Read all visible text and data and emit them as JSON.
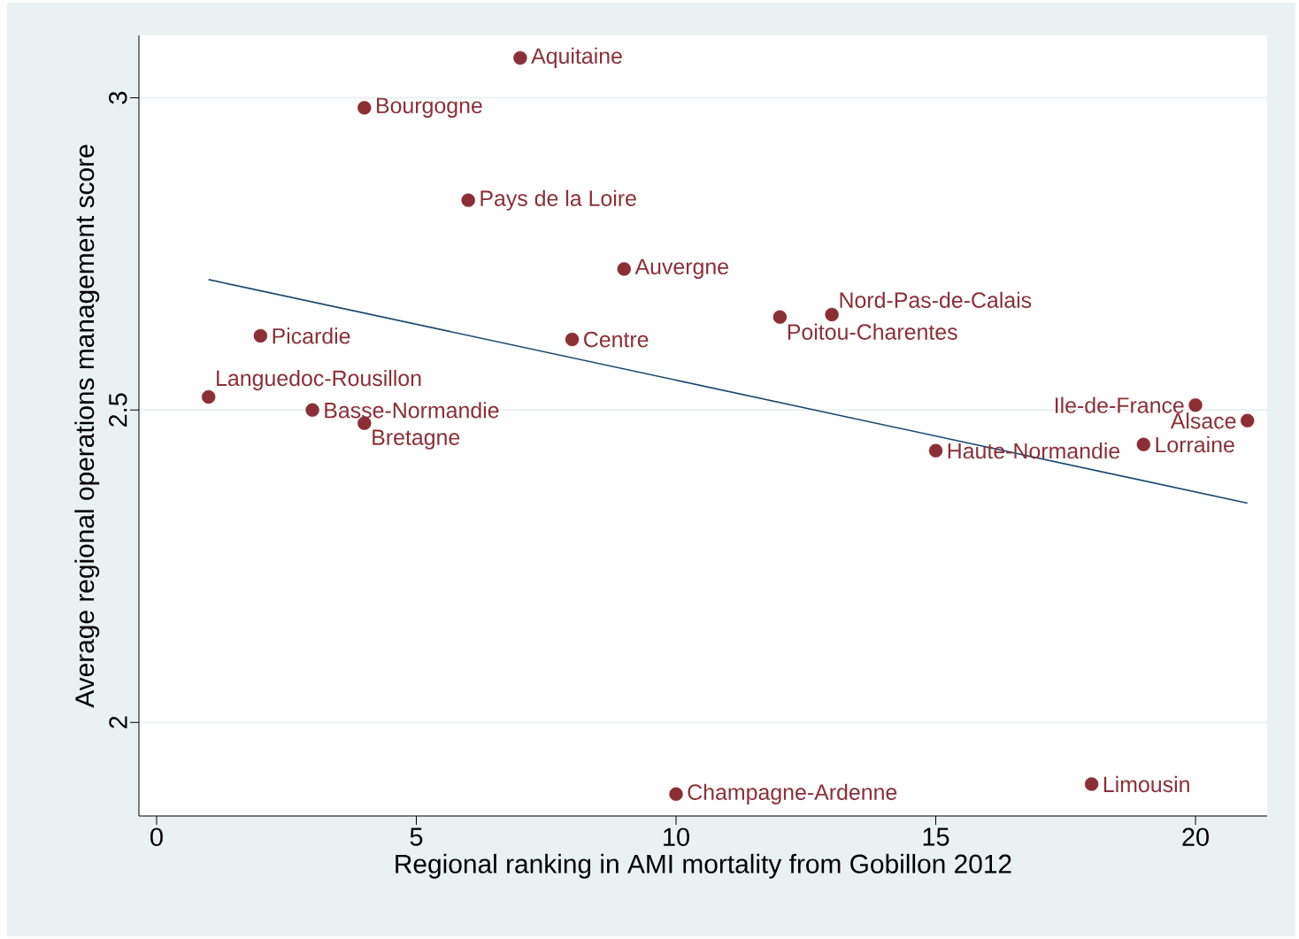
{
  "chart_data": {
    "type": "scatter",
    "xlabel": "Regional ranking in AMI mortality from Gobillon 2012",
    "ylabel": "Average regional operations management score",
    "xlim": [
      -0.34,
      21.38
    ],
    "ylim": [
      1.85,
      3.1
    ],
    "xticks": [
      0,
      5,
      10,
      15,
      20
    ],
    "yticks": [
      2,
      2.5,
      3
    ],
    "grid": "y",
    "series": [
      {
        "type": "scatter",
        "color": "#8b2f37",
        "x": [
          7,
          4,
          6,
          9,
          12,
          13,
          2,
          8,
          1,
          3,
          4,
          20,
          21,
          19,
          15,
          18,
          10
        ],
        "values": [
          3.064,
          2.984,
          2.836,
          2.726,
          2.649,
          2.653,
          2.619,
          2.613,
          2.521,
          2.5,
          2.479,
          2.508,
          2.483,
          2.445,
          2.435,
          1.901,
          1.885
        ]
      },
      {
        "type": "line",
        "color": "#1a476f",
        "marker": "none",
        "x": [
          1,
          21
        ],
        "values": [
          2.709,
          2.351
        ]
      }
    ],
    "annotations": [
      {
        "text": "Aquitaine",
        "x": 7,
        "y": 3.064
      },
      {
        "text": "Bourgogne",
        "x": 4,
        "y": 2.984
      },
      {
        "text": "Pays de la Loire",
        "x": 6,
        "y": 2.836
      },
      {
        "text": "Auvergne",
        "x": 9,
        "y": 2.726
      },
      {
        "text": "Poitou-Charentes",
        "x": 12,
        "y": 2.649
      },
      {
        "text": "Nord-Pas-de-Calais",
        "x": 13,
        "y": 2.653
      },
      {
        "text": "Picardie",
        "x": 2,
        "y": 2.619
      },
      {
        "text": "Centre",
        "x": 8,
        "y": 2.613
      },
      {
        "text": "Languedoc-Rousillon",
        "x": 1,
        "y": 2.521
      },
      {
        "text": "Basse-Normandie",
        "x": 3,
        "y": 2.5
      },
      {
        "text": "Bretagne",
        "x": 4,
        "y": 2.479
      },
      {
        "text": "Ile-de-France",
        "x": 20,
        "y": 2.508
      },
      {
        "text": "Alsace",
        "x": 21,
        "y": 2.483
      },
      {
        "text": "Lorraine",
        "x": 19,
        "y": 2.445
      },
      {
        "text": "Haute-Normandie",
        "x": 15,
        "y": 2.435
      },
      {
        "text": "Limousin",
        "x": 18,
        "y": 1.901
      },
      {
        "text": "Champagne-Ardenne",
        "x": 10,
        "y": 1.885
      }
    ]
  }
}
